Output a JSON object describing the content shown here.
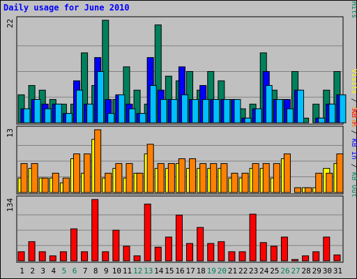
{
  "chart_data": {
    "type": "bar",
    "title": "Daily usage for June 2010",
    "days": [
      "1",
      "2",
      "3",
      "4",
      "5",
      "6",
      "7",
      "8",
      "9",
      "10",
      "11",
      "12",
      "13",
      "14",
      "15",
      "16",
      "17",
      "18",
      "19",
      "20",
      "21",
      "22",
      "23",
      "24",
      "25",
      "26",
      "27",
      "28",
      "29",
      "30",
      "31"
    ],
    "weekend_days": [
      "5",
      "6",
      "12",
      "13",
      "19",
      "20",
      "26",
      "27"
    ],
    "colors": {
      "background": "#c0c0c0",
      "plot": "#c0c0c0",
      "hits": "#00805c",
      "files": "#0000ff",
      "pages": "#00c0ff",
      "visits": "#ffff00",
      "sites": "#ff8000",
      "kb_in": "#ff0000",
      "title": "#0000ff",
      "weekday_label": "#000000",
      "weekend_label": "#00805c"
    },
    "panels": [
      {
        "id": "hits-files-pages",
        "max_label": "22",
        "ymax": 22,
        "labels": [
          {
            "text": "Pages",
            "color": "#00c0ff"
          },
          {
            "text": " / ",
            "color": "#000000"
          },
          {
            "text": "Files",
            "color": "#0000ff"
          },
          {
            "text": " / ",
            "color": "#000000"
          },
          {
            "text": "Hits",
            "color": "#00805c"
          }
        ],
        "series": [
          {
            "name": "Hits",
            "color": "#00805c",
            "values": [
              6,
              8,
              7,
              5,
              4,
              4,
              15,
              8,
              22,
              5,
              12,
              7,
              4,
              21,
              10,
              9,
              11,
              7,
              11,
              9,
              5,
              3,
              4,
              15,
              7,
              5,
              11,
              1,
              4,
              7,
              11
            ]
          },
          {
            "name": "Files",
            "color": "#0000ff",
            "values": [
              3,
              5,
              4,
              4,
              2,
              9,
              4,
              14,
              5,
              6,
              4,
              2,
              14,
              7,
              5,
              12,
              5,
              8,
              5,
              5,
              5,
              1,
              3,
              11,
              5,
              5,
              7,
              0,
              1,
              4,
              6
            ]
          },
          {
            "name": "Pages",
            "color": "#00c0ff",
            "values": [
              3,
              5,
              3,
              4,
              2,
              7,
              4,
              11,
              2,
              6,
              3,
              2,
              8,
              5,
              5,
              6,
              5,
              5,
              5,
              5,
              5,
              1,
              3,
              8,
              5,
              3,
              7,
              0,
              1,
              4,
              6
            ]
          }
        ]
      },
      {
        "id": "visits-sites",
        "max_label": "13",
        "ymax": 13,
        "labels": [
          {
            "text": "Visits",
            "color": "#ffff00"
          },
          {
            "text": " / ",
            "color": "#000000"
          },
          {
            "text": "Sites",
            "color": "#ff8000"
          }
        ],
        "series": [
          {
            "name": "Visits",
            "color": "#ffff00",
            "values": [
              3,
              5,
              3,
              3,
              2,
              7,
              4,
              11,
              3,
              5,
              3,
              4,
              8,
              5,
              5,
              6,
              5,
              5,
              5,
              5,
              3,
              3,
              5,
              5,
              3,
              7,
              0,
              1,
              1,
              5,
              6
            ]
          },
          {
            "name": "Sites",
            "color": "#ff8000",
            "values": [
              6,
              6,
              3,
              4,
              3,
              8,
              8,
              13,
              4,
              6,
              6,
              4,
              10,
              6,
              6,
              7,
              7,
              6,
              6,
              6,
              4,
              4,
              6,
              6,
              6,
              8,
              1,
              1,
              4,
              4,
              8
            ]
          }
        ]
      },
      {
        "id": "kb",
        "max_label": "134",
        "ymax": 134,
        "labels": [
          {
            "text": "KB F",
            "color": "#ff0000"
          },
          {
            "text": " / ",
            "color": "#000000"
          },
          {
            "text": "KB In",
            "color": "#0000ff"
          },
          {
            "text": " / ",
            "color": "#000000"
          },
          {
            "text": "KB Out",
            "color": "#00805c"
          }
        ],
        "series": [
          {
            "name": "KB In",
            "color": "#ff0000",
            "values": [
              20,
              42,
              20,
              11,
              20,
              70,
              20,
              134,
              20,
              67,
              32,
              11,
              124,
              30,
              52,
              100,
              38,
              73,
              38,
              42,
              20,
              20,
              102,
              40,
              32,
              52,
              3,
              11,
              20,
              52,
              13
            ]
          }
        ]
      }
    ]
  }
}
